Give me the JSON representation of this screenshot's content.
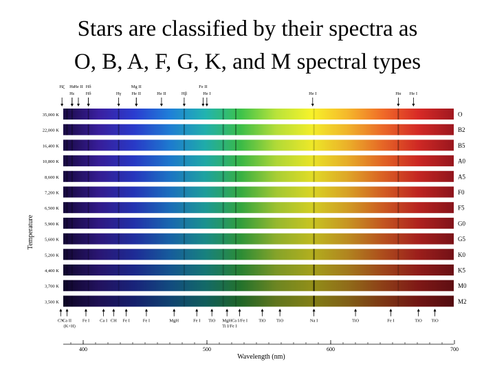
{
  "slide": {
    "title_line1": "Stars are classified by their spectra as",
    "title_line2": "O, B, A, F, G, K, and M spectral types"
  },
  "figure": {
    "y_axis_label": "Temperature",
    "x_axis_label": "Wavelength (nm)",
    "x_ticks": [
      {
        "label": "400",
        "nm": 400
      },
      {
        "label": "500",
        "nm": 500
      },
      {
        "label": "600",
        "nm": 600
      },
      {
        "label": "700",
        "nm": 700
      }
    ],
    "wavelength_range_nm": [
      390,
      700
    ],
    "rows": [
      {
        "temperature": "35,000 K",
        "type": "O",
        "darkness": 0.0
      },
      {
        "temperature": "22,000 K",
        "type": "B2",
        "darkness": 0.02
      },
      {
        "temperature": "16,400 K",
        "type": "B5",
        "darkness": 0.04
      },
      {
        "temperature": "10,800 K",
        "type": "A0",
        "darkness": 0.06
      },
      {
        "temperature": "8,600 K",
        "type": "A5",
        "darkness": 0.09
      },
      {
        "temperature": "7,200 K",
        "type": "F0",
        "darkness": 0.12
      },
      {
        "temperature": "6,500 K",
        "type": "F5",
        "darkness": 0.15
      },
      {
        "temperature": "5,900 K",
        "type": "G0",
        "darkness": 0.19
      },
      {
        "temperature": "5,600 K",
        "type": "G5",
        "darkness": 0.23
      },
      {
        "temperature": "5,200 K",
        "type": "K0",
        "darkness": 0.28
      },
      {
        "temperature": "4,400 K",
        "type": "K5",
        "darkness": 0.34
      },
      {
        "temperature": "3,700 K",
        "type": "M0",
        "darkness": 0.41
      },
      {
        "temperature": "3,500 K",
        "type": "M2",
        "darkness": 0.48
      }
    ],
    "top_lines": [
      {
        "label": "Hδ",
        "nm": 410,
        "row": 1
      },
      {
        "label": "Hε",
        "nm": 397,
        "row": 0
      },
      {
        "label": "He II",
        "nm": 402,
        "row": 0
      },
      {
        "label": "Hε",
        "nm": 397,
        "row": 1
      },
      {
        "label": "Hζ",
        "nm": 389,
        "row": 0
      },
      {
        "label": "Hδ",
        "nm": 410,
        "row": 0
      },
      {
        "label": "Hγ",
        "nm": 434,
        "row": 1
      },
      {
        "label": "Mg II",
        "nm": 448,
        "row": 0
      },
      {
        "label": "He II",
        "nm": 448,
        "row": 1
      },
      {
        "label": "He II",
        "nm": 468,
        "row": 1
      },
      {
        "label": "Hβ",
        "nm": 486,
        "row": 1
      },
      {
        "label": "Fe II",
        "nm": 501,
        "row": 0
      },
      {
        "label": "He I",
        "nm": 504,
        "row": 1
      },
      {
        "label": "He I",
        "nm": 588,
        "row": 1
      },
      {
        "label": "Hα",
        "nm": 656,
        "row": 1
      },
      {
        "label": "He I",
        "nm": 668,
        "row": 1
      }
    ],
    "bottom_lines": [
      {
        "label": "CN",
        "nm": 388
      },
      {
        "label": "Ca II",
        "nm": 393
      },
      {
        "label": "(K+H)",
        "nm": 395,
        "sub": true
      },
      {
        "label": "Fe I",
        "nm": 408
      },
      {
        "label": "Ca I",
        "nm": 422
      },
      {
        "label": "CH",
        "nm": 430
      },
      {
        "label": "Fe I",
        "nm": 440
      },
      {
        "label": "Fe I",
        "nm": 456
      },
      {
        "label": "MgH",
        "nm": 478
      },
      {
        "label": "Fe I",
        "nm": 496
      },
      {
        "label": "TiO",
        "nm": 508
      },
      {
        "label": "MgH",
        "nm": 520
      },
      {
        "label": "Ti I/Fe I",
        "nm": 522,
        "sub": true
      },
      {
        "label": "Ca I/Fe I",
        "nm": 530
      },
      {
        "label": "TiO",
        "nm": 548
      },
      {
        "label": "TiO",
        "nm": 562
      },
      {
        "label": "Na I",
        "nm": 589
      },
      {
        "label": "TiO",
        "nm": 622
      },
      {
        "label": "Fe I",
        "nm": 650
      },
      {
        "label": "TiO",
        "nm": 672
      },
      {
        "label": "TiO",
        "nm": 685
      }
    ],
    "static_absorption_nm": [
      393,
      397,
      410,
      434,
      486,
      517,
      527,
      589,
      656
    ],
    "colors": {
      "band_stops": [
        "#1a0a45",
        "#3a1fa0",
        "#2a3cd0",
        "#1f7fd8",
        "#21b3b0",
        "#3dc24a",
        "#b9e33a",
        "#f7f22a",
        "#f5b82b",
        "#f06b28",
        "#d82a26",
        "#a01820"
      ],
      "row_label": "#000000"
    }
  }
}
